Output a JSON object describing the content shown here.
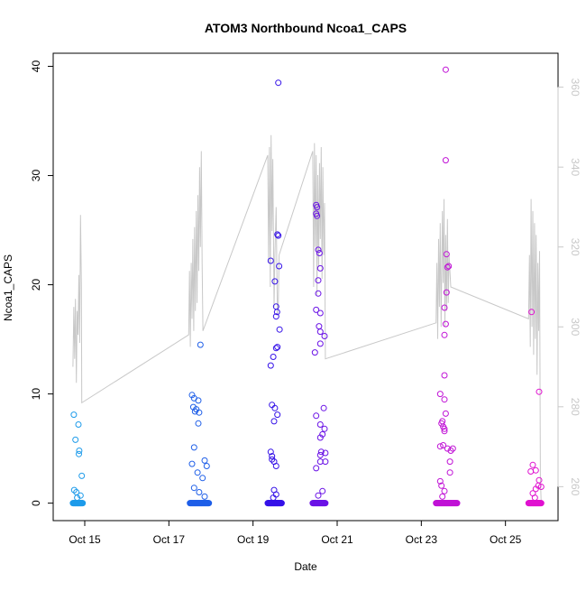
{
  "chart_data": {
    "type": "scatter",
    "title": "ATOM3 Northbound Ncoa1_CAPS",
    "xlabel": "Date",
    "ylabel": "Ncoa1_CAPS",
    "x_ticks": [
      "Oct 15",
      "Oct 17",
      "Oct 19",
      "Oct 21",
      "Oct 23",
      "Oct 25"
    ],
    "x_tick_days": [
      15,
      17,
      19,
      21,
      23,
      25
    ],
    "xlim": [
      14.25,
      26.25
    ],
    "ylim": [
      -1.6,
      41.2
    ],
    "y_ticks": [
      0,
      10,
      20,
      30,
      40
    ],
    "y2lim": [
      251.5,
      368.5
    ],
    "y2_ticks": [
      260,
      280,
      300,
      320,
      340,
      360
    ],
    "grid": false,
    "legend": "none",
    "colors": {
      "line": "#c8c8c8",
      "axis": "#000000",
      "axis2": "#c8c8c8"
    },
    "point_groups": [
      {
        "color": "#1e9bea",
        "days": [
          14.72,
          14.95
        ],
        "zeros": 26,
        "points": [
          [
            14.74,
            8.1
          ],
          [
            14.78,
            5.8
          ],
          [
            14.85,
            7.2
          ],
          [
            14.87,
            4.8
          ],
          [
            14.86,
            4.5
          ],
          [
            14.93,
            2.5
          ],
          [
            14.75,
            1.2
          ],
          [
            14.8,
            1.0
          ],
          [
            14.9,
            0.7
          ],
          [
            14.82,
            0.5
          ]
        ]
      },
      {
        "color": "#1f5fe8",
        "days": [
          17.5,
          17.95
        ],
        "zeros": 40,
        "points": [
          [
            17.55,
            9.9
          ],
          [
            17.6,
            9.6
          ],
          [
            17.7,
            9.4
          ],
          [
            17.58,
            8.8
          ],
          [
            17.65,
            8.6
          ],
          [
            17.72,
            8.3
          ],
          [
            17.62,
            8.4
          ],
          [
            17.7,
            7.3
          ],
          [
            17.75,
            14.5
          ],
          [
            17.6,
            5.1
          ],
          [
            17.55,
            3.6
          ],
          [
            17.85,
            3.9
          ],
          [
            17.9,
            3.4
          ],
          [
            17.68,
            2.8
          ],
          [
            17.8,
            2.3
          ],
          [
            17.6,
            1.4
          ],
          [
            17.72,
            1.0
          ],
          [
            17.85,
            0.6
          ]
        ]
      },
      {
        "color": "#3512e8",
        "days": [
          19.35,
          19.68
        ],
        "zeros": 36,
        "points": [
          [
            19.6,
            38.5
          ],
          [
            19.42,
            22.2
          ],
          [
            19.58,
            24.6
          ],
          [
            19.6,
            24.5
          ],
          [
            19.62,
            21.7
          ],
          [
            19.52,
            20.3
          ],
          [
            19.55,
            18.0
          ],
          [
            19.57,
            17.5
          ],
          [
            19.55,
            17.1
          ],
          [
            19.63,
            15.9
          ],
          [
            19.58,
            14.3
          ],
          [
            19.55,
            14.2
          ],
          [
            19.48,
            13.4
          ],
          [
            19.42,
            12.6
          ],
          [
            19.45,
            9.0
          ],
          [
            19.52,
            8.7
          ],
          [
            19.58,
            8.1
          ],
          [
            19.5,
            7.5
          ],
          [
            19.42,
            4.7
          ],
          [
            19.45,
            4.3
          ],
          [
            19.45,
            4.0
          ],
          [
            19.5,
            3.8
          ],
          [
            19.55,
            3.4
          ],
          [
            19.5,
            1.2
          ],
          [
            19.55,
            0.8
          ],
          [
            19.48,
            0.5
          ]
        ]
      },
      {
        "color": "#6a12e6",
        "days": [
          20.42,
          20.72
        ],
        "zeros": 30,
        "points": [
          [
            20.5,
            27.3
          ],
          [
            20.52,
            27.1
          ],
          [
            20.5,
            26.5
          ],
          [
            20.52,
            26.3
          ],
          [
            20.55,
            23.2
          ],
          [
            20.58,
            22.9
          ],
          [
            20.6,
            21.5
          ],
          [
            20.55,
            20.4
          ],
          [
            20.55,
            19.2
          ],
          [
            20.5,
            17.7
          ],
          [
            20.6,
            17.4
          ],
          [
            20.57,
            16.2
          ],
          [
            20.6,
            15.7
          ],
          [
            20.7,
            15.3
          ],
          [
            20.6,
            14.6
          ],
          [
            20.47,
            13.8
          ],
          [
            20.68,
            8.7
          ],
          [
            20.5,
            8.0
          ],
          [
            20.6,
            7.2
          ],
          [
            20.7,
            6.8
          ],
          [
            20.65,
            6.3
          ],
          [
            20.6,
            6.0
          ],
          [
            20.62,
            4.7
          ],
          [
            20.6,
            4.4
          ],
          [
            20.72,
            4.6
          ],
          [
            20.6,
            3.8
          ],
          [
            20.72,
            3.8
          ],
          [
            20.5,
            3.2
          ],
          [
            20.65,
            1.1
          ],
          [
            20.55,
            0.7
          ]
        ]
      },
      {
        "color": "#c012d6",
        "days": [
          23.35,
          23.85
        ],
        "zeros": 44,
        "points": [
          [
            23.58,
            39.7
          ],
          [
            23.58,
            31.4
          ],
          [
            23.6,
            22.8
          ],
          [
            23.65,
            21.7
          ],
          [
            23.62,
            21.6
          ],
          [
            23.6,
            19.3
          ],
          [
            23.55,
            17.9
          ],
          [
            23.58,
            16.4
          ],
          [
            23.55,
            15.4
          ],
          [
            23.55,
            11.7
          ],
          [
            23.45,
            10.0
          ],
          [
            23.55,
            9.5
          ],
          [
            23.58,
            8.2
          ],
          [
            23.5,
            7.5
          ],
          [
            23.48,
            7.3
          ],
          [
            23.52,
            7.0
          ],
          [
            23.55,
            6.8
          ],
          [
            23.55,
            6.6
          ],
          [
            23.45,
            5.2
          ],
          [
            23.52,
            5.3
          ],
          [
            23.62,
            5.0
          ],
          [
            23.75,
            5.0
          ],
          [
            23.7,
            4.8
          ],
          [
            23.68,
            3.8
          ],
          [
            23.68,
            2.8
          ],
          [
            23.45,
            2.0
          ],
          [
            23.48,
            1.6
          ],
          [
            23.55,
            1.1
          ],
          [
            23.5,
            0.6
          ]
        ]
      },
      {
        "color": "#e012d0",
        "days": [
          25.55,
          25.85
        ],
        "zeros": 30,
        "points": [
          [
            25.62,
            17.5
          ],
          [
            25.8,
            10.2
          ],
          [
            25.65,
            3.5
          ],
          [
            25.6,
            2.9
          ],
          [
            25.72,
            3.0
          ],
          [
            25.8,
            2.1
          ],
          [
            25.78,
            1.6
          ],
          [
            25.72,
            1.3
          ],
          [
            25.85,
            1.5
          ],
          [
            25.65,
            0.9
          ],
          [
            25.7,
            0.5
          ]
        ]
      }
    ],
    "line_secondary": [
      [
        14.72,
        290
      ],
      [
        14.74,
        305
      ],
      [
        14.76,
        292
      ],
      [
        14.78,
        307
      ],
      [
        14.8,
        286
      ],
      [
        14.82,
        304
      ],
      [
        14.84,
        298
      ],
      [
        14.86,
        313
      ],
      [
        14.88,
        296
      ],
      [
        14.9,
        328
      ],
      [
        14.92,
        310
      ],
      [
        14.93,
        281
      ],
      [
        17.47,
        298
      ],
      [
        17.49,
        314
      ],
      [
        17.51,
        295
      ],
      [
        17.53,
        316
      ],
      [
        17.55,
        302
      ],
      [
        17.57,
        322
      ],
      [
        17.59,
        299
      ],
      [
        17.61,
        325
      ],
      [
        17.63,
        304
      ],
      [
        17.65,
        329
      ],
      [
        17.67,
        306
      ],
      [
        17.69,
        333
      ],
      [
        17.71,
        314
      ],
      [
        17.73,
        340
      ],
      [
        17.75,
        320
      ],
      [
        17.77,
        344
      ],
      [
        17.79,
        316
      ],
      [
        17.81,
        299
      ],
      [
        19.35,
        343
      ],
      [
        19.37,
        316
      ],
      [
        19.39,
        345
      ],
      [
        19.41,
        310
      ],
      [
        19.43,
        348
      ],
      [
        19.45,
        324
      ],
      [
        19.47,
        342
      ],
      [
        19.5,
        305
      ],
      [
        19.52,
        318
      ],
      [
        19.55,
        330
      ],
      [
        19.58,
        303
      ],
      [
        19.6,
        306
      ],
      [
        19.62,
        318
      ],
      [
        20.42,
        344
      ],
      [
        20.44,
        310
      ],
      [
        20.46,
        346
      ],
      [
        20.48,
        320
      ],
      [
        20.5,
        343
      ],
      [
        20.52,
        308
      ],
      [
        20.54,
        338
      ],
      [
        20.56,
        315
      ],
      [
        20.58,
        341
      ],
      [
        20.6,
        322
      ],
      [
        20.62,
        345
      ],
      [
        20.64,
        312
      ],
      [
        20.66,
        340
      ],
      [
        20.68,
        318
      ],
      [
        20.7,
        331
      ],
      [
        20.72,
        292
      ],
      [
        23.35,
        301
      ],
      [
        23.37,
        316
      ],
      [
        23.39,
        297
      ],
      [
        23.41,
        322
      ],
      [
        23.43,
        305
      ],
      [
        23.45,
        326
      ],
      [
        23.47,
        300
      ],
      [
        23.5,
        329
      ],
      [
        23.52,
        311
      ],
      [
        23.54,
        332
      ],
      [
        23.56,
        300
      ],
      [
        23.58,
        323
      ],
      [
        23.6,
        304
      ],
      [
        23.62,
        327
      ],
      [
        23.64,
        306
      ],
      [
        23.66,
        318
      ],
      [
        23.7,
        310
      ],
      [
        25.55,
        302
      ],
      [
        25.57,
        318
      ],
      [
        25.59,
        295
      ],
      [
        25.61,
        332
      ],
      [
        25.63,
        300
      ],
      [
        25.65,
        329
      ],
      [
        25.67,
        293
      ],
      [
        25.69,
        326
      ],
      [
        25.71,
        297
      ],
      [
        25.73,
        323
      ],
      [
        25.75,
        288
      ],
      [
        25.77,
        316
      ],
      [
        25.79,
        299
      ],
      [
        25.81,
        319
      ],
      [
        25.83,
        262
      ],
      [
        25.85,
        256
      ]
    ]
  }
}
